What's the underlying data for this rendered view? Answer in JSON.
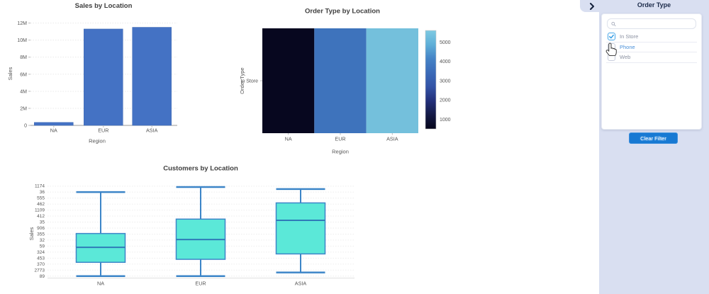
{
  "chart_data": [
    {
      "type": "bar",
      "title": "Sales by Location",
      "xlabel": "Region",
      "ylabel": "Sales",
      "categories": [
        "NA",
        "EUR",
        "ASIA"
      ],
      "values": [
        350000,
        11300000,
        11500000
      ],
      "ylim": [
        0,
        12000000
      ],
      "yticks": {
        "labels": [
          "0",
          "2M",
          "4M",
          "6M",
          "8M",
          "10M",
          "12M"
        ],
        "values": [
          0,
          2000000,
          4000000,
          6000000,
          8000000,
          10000000,
          12000000
        ]
      },
      "bar_color": "#4472C4",
      "grid": true,
      "legend": false
    },
    {
      "type": "heatmap",
      "title": "Order Type by Location",
      "xlabel": "Region",
      "ylabel": "Order Type",
      "x_categories": [
        "NA",
        "EUR",
        "ASIA"
      ],
      "y_categories": [
        "In Store"
      ],
      "values": [
        [
          620,
          3800,
          5400
        ]
      ],
      "cell_colors": [
        [
          "#07071F",
          "#3E73BC",
          "#74C0DC"
        ]
      ],
      "colorbar": {
        "min": 500,
        "max": 5600,
        "ticks": [
          1000,
          2000,
          3000,
          4000,
          5000
        ],
        "gradient_bottom_to_top": [
          "#05051A",
          "#141A45",
          "#23307A",
          "#3353A6",
          "#3B6AB8",
          "#4583C6",
          "#5FAFD8",
          "#7ECAE2"
        ]
      }
    },
    {
      "type": "box",
      "title": "Customers by Location",
      "xlabel": "",
      "ylabel": "Sales",
      "categories": [
        "NA",
        "EUR",
        "ASIA"
      ],
      "y_axis_type": "category",
      "ytick_labels": [
        "1174",
        "36",
        "555",
        "462",
        "1109",
        "412",
        "35",
        "906",
        "355",
        "32",
        "59",
        "324",
        "453",
        "370",
        "2773",
        "89"
      ],
      "units": "tick-index (0 = top tick '1174', 15 = bottom tick '89')",
      "series": [
        {
          "name": "NA",
          "whisker_top": 1.0,
          "box_top": 7.9,
          "median": 10.2,
          "box_bottom": 12.7,
          "whisker_bottom": 15.0
        },
        {
          "name": "EUR",
          "whisker_top": 0.15,
          "box_top": 5.5,
          "median": 8.9,
          "box_bottom": 12.2,
          "whisker_bottom": 15.0
        },
        {
          "name": "ASIA",
          "whisker_top": 0.5,
          "box_top": 2.8,
          "median": 5.7,
          "box_bottom": 11.3,
          "whisker_bottom": 14.4
        }
      ],
      "box_fill": "#5BE8D8",
      "box_stroke": "#3C85C8",
      "median_color": "#2F7AB8",
      "grid": true
    }
  ],
  "sidebar": {
    "title": "Order Type",
    "collapse_icon": "chevron-right",
    "search_value": "",
    "items": [
      {
        "label": "In Store",
        "checked": true,
        "highlighted": false
      },
      {
        "label": "Phone",
        "checked": false,
        "highlighted": true
      },
      {
        "label": "Web",
        "checked": false,
        "highlighted": false
      }
    ],
    "clear_button_label": "Clear Filter",
    "colors": {
      "panel_bg": "#D9DFF1",
      "button_bg": "#1779D3",
      "checkbox_checked": "#2F9BE5",
      "label": "#8A90A0",
      "label_highlighted": "#4A90D9",
      "title_text": "#1C2B4A"
    }
  },
  "cursor": {
    "type": "hand-pointer",
    "over": "Phone"
  }
}
